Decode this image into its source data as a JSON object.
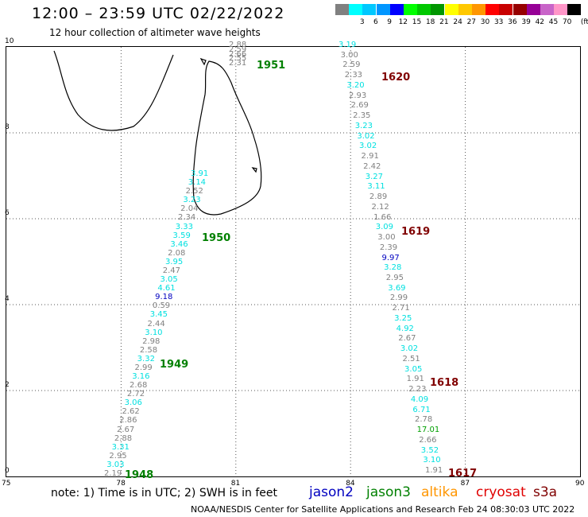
{
  "header": {
    "title": "12:00 – 23:59 UTC 02/22/2022",
    "subtitle": "12 hour collection of altimeter wave heights"
  },
  "color_scale": {
    "unit": "(ft)",
    "items": [
      {
        "label": "",
        "color": "#808080"
      },
      {
        "label": "3",
        "color": "#00ffff"
      },
      {
        "label": "6",
        "color": "#00c8ff"
      },
      {
        "label": "9",
        "color": "#0096ff"
      },
      {
        "label": "12",
        "color": "#0000ff"
      },
      {
        "label": "15",
        "color": "#00ff00"
      },
      {
        "label": "18",
        "color": "#00c800"
      },
      {
        "label": "21",
        "color": "#009600"
      },
      {
        "label": "24",
        "color": "#ffff00"
      },
      {
        "label": "27",
        "color": "#ffc800"
      },
      {
        "label": "30",
        "color": "#ff9600"
      },
      {
        "label": "33",
        "color": "#ff0000"
      },
      {
        "label": "36",
        "color": "#c80000"
      },
      {
        "label": "39",
        "color": "#960000"
      },
      {
        "label": "42",
        "color": "#960096"
      },
      {
        "label": "45",
        "color": "#c864c8"
      },
      {
        "label": "70",
        "color": "#ff96c8"
      },
      {
        "label": "",
        "color": "#000000"
      }
    ]
  },
  "axes": {
    "x_ticks": [
      "75",
      "78",
      "81",
      "84",
      "87",
      "90"
    ],
    "y_ticks": [
      "0",
      "2",
      "4",
      "6",
      "8",
      "10"
    ]
  },
  "pass_labels": [
    {
      "text": "1951",
      "color": "#008000"
    },
    {
      "text": "1620",
      "color": "#800000"
    },
    {
      "text": "1950",
      "color": "#008000"
    },
    {
      "text": "1619",
      "color": "#800000"
    },
    {
      "text": "1949",
      "color": "#008000"
    },
    {
      "text": "1618",
      "color": "#800000"
    },
    {
      "text": "1948",
      "color": "#008000"
    },
    {
      "text": "1617",
      "color": "#800000"
    }
  ],
  "tracks": {
    "west": [
      {
        "v": "2.88",
        "c": "#808080"
      },
      {
        "v": "2.59",
        "c": "#808080"
      },
      {
        "v": "2.66",
        "c": "#808080"
      },
      {
        "v": "2.55",
        "c": "#808080"
      },
      {
        "v": "2.31",
        "c": "#808080"
      },
      {
        "v": "3.91",
        "c": "#00e0e0"
      },
      {
        "v": "3.14",
        "c": "#00e0e0"
      },
      {
        "v": "2.52",
        "c": "#808080"
      },
      {
        "v": "3.23",
        "c": "#00e0e0"
      },
      {
        "v": "2.04",
        "c": "#808080"
      },
      {
        "v": "2.34",
        "c": "#808080"
      },
      {
        "v": "3.33",
        "c": "#00e0e0"
      },
      {
        "v": "3.59",
        "c": "#00e0e0"
      },
      {
        "v": "3.46",
        "c": "#00e0e0"
      },
      {
        "v": "2.08",
        "c": "#808080"
      },
      {
        "v": "3.95",
        "c": "#00e0e0"
      },
      {
        "v": "2.47",
        "c": "#808080"
      },
      {
        "v": "3.05",
        "c": "#00e0e0"
      },
      {
        "v": "4.61",
        "c": "#00e0e0"
      },
      {
        "v": "9.18",
        "c": "#0000c0"
      },
      {
        "v": "0.59",
        "c": "#808080"
      },
      {
        "v": "3.45",
        "c": "#00e0e0"
      },
      {
        "v": "2.44",
        "c": "#808080"
      },
      {
        "v": "3.10",
        "c": "#00e0e0"
      },
      {
        "v": "2.98",
        "c": "#808080"
      },
      {
        "v": "2.58",
        "c": "#808080"
      },
      {
        "v": "3.32",
        "c": "#00e0e0"
      },
      {
        "v": "2.99",
        "c": "#808080"
      },
      {
        "v": "3.16",
        "c": "#00e0e0"
      },
      {
        "v": "2.68",
        "c": "#808080"
      },
      {
        "v": "2.72",
        "c": "#808080"
      },
      {
        "v": "3.06",
        "c": "#00e0e0"
      },
      {
        "v": "2.62",
        "c": "#808080"
      },
      {
        "v": "2.86",
        "c": "#808080"
      },
      {
        "v": "2.67",
        "c": "#808080"
      },
      {
        "v": "2.88",
        "c": "#808080"
      },
      {
        "v": "3.31",
        "c": "#00e0e0"
      },
      {
        "v": "2.95",
        "c": "#808080"
      },
      {
        "v": "3.03",
        "c": "#00e0e0"
      },
      {
        "v": "2.19",
        "c": "#808080"
      }
    ],
    "east": [
      {
        "v": "3.19",
        "c": "#00e0e0"
      },
      {
        "v": "3.00",
        "c": "#808080"
      },
      {
        "v": "2.59",
        "c": "#808080"
      },
      {
        "v": "2.33",
        "c": "#808080"
      },
      {
        "v": "3.20",
        "c": "#00e0e0"
      },
      {
        "v": "2.93",
        "c": "#808080"
      },
      {
        "v": "2.69",
        "c": "#808080"
      },
      {
        "v": "2.35",
        "c": "#808080"
      },
      {
        "v": "3.23",
        "c": "#00e0e0"
      },
      {
        "v": "3.02",
        "c": "#00e0e0"
      },
      {
        "v": "3.02",
        "c": "#00e0e0"
      },
      {
        "v": "2.91",
        "c": "#808080"
      },
      {
        "v": "2.42",
        "c": "#808080"
      },
      {
        "v": "3.27",
        "c": "#00e0e0"
      },
      {
        "v": "3.11",
        "c": "#00e0e0"
      },
      {
        "v": "2.89",
        "c": "#808080"
      },
      {
        "v": "2.12",
        "c": "#808080"
      },
      {
        "v": "1.66",
        "c": "#808080"
      },
      {
        "v": "3.09",
        "c": "#00e0e0"
      },
      {
        "v": "3.00",
        "c": "#808080"
      },
      {
        "v": "2.39",
        "c": "#808080"
      },
      {
        "v": "9.97",
        "c": "#0000c0"
      },
      {
        "v": "3.28",
        "c": "#00e0e0"
      },
      {
        "v": "2.95",
        "c": "#808080"
      },
      {
        "v": "3.69",
        "c": "#00e0e0"
      },
      {
        "v": "2.99",
        "c": "#808080"
      },
      {
        "v": "2.71",
        "c": "#808080"
      },
      {
        "v": "3.25",
        "c": "#00e0e0"
      },
      {
        "v": "4.92",
        "c": "#00e0e0"
      },
      {
        "v": "2.67",
        "c": "#808080"
      },
      {
        "v": "3.02",
        "c": "#00e0e0"
      },
      {
        "v": "2.51",
        "c": "#808080"
      },
      {
        "v": "3.05",
        "c": "#00e0e0"
      },
      {
        "v": "1.91",
        "c": "#808080"
      },
      {
        "v": "2.23",
        "c": "#808080"
      },
      {
        "v": "4.09",
        "c": "#00e0e0"
      },
      {
        "v": "6.71",
        "c": "#00e0e0"
      },
      {
        "v": "2.78",
        "c": "#808080"
      },
      {
        "v": "17.01",
        "c": "#00a000"
      },
      {
        "v": "2.66",
        "c": "#808080"
      },
      {
        "v": "3.52",
        "c": "#00e0e0"
      },
      {
        "v": "3.10",
        "c": "#00e0e0"
      },
      {
        "v": "1.91",
        "c": "#808080"
      }
    ]
  },
  "footer": {
    "note": "note:  1) Time is in UTC;  2) SWH is in feet",
    "legend": [
      {
        "text": "jason2",
        "color": "#0000c0"
      },
      {
        "text": "jason3",
        "color": "#008000"
      },
      {
        "text": "altika",
        "color": "#ff9600"
      },
      {
        "text": "cryosat",
        "color": "#e00000"
      },
      {
        "text": "s3a",
        "color": "#800000"
      }
    ],
    "credit": "NOAA/NESDIS Center for Satellite Applications and Research    Feb 24 08:30:03 UTC 2022"
  }
}
